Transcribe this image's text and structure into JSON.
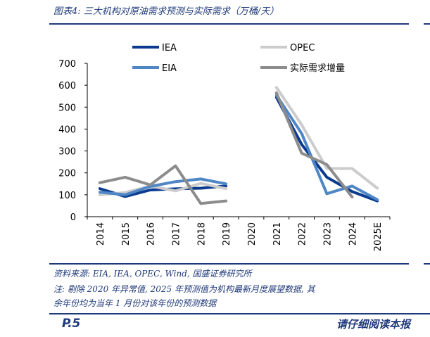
{
  "header": {
    "title": "图表4:  三大机构对原油需求预测与实际需求（万桶/天）"
  },
  "colors": {
    "brand": "#1f3a7a",
    "iea": "#0a3b8f",
    "opec": "#cccccc",
    "eia": "#4f86c6",
    "actual": "#8c8c8c"
  },
  "chart_data": {
    "type": "line",
    "categories": [
      "2014",
      "2015",
      "2016",
      "2017",
      "2018",
      "2019",
      "2020",
      "2021",
      "2022",
      "2023",
      "2024",
      "2025E"
    ],
    "ylim": [
      0,
      700
    ],
    "yticks": [
      0,
      100,
      200,
      300,
      400,
      500,
      600,
      700
    ],
    "ytick_labels": [
      "0",
      "100",
      "200",
      "300",
      "400",
      "500",
      "600",
      "700"
    ],
    "grid": false,
    "legend_position": "top",
    "series": [
      {
        "name": "IEA",
        "color": "#0a3b8f",
        "width": 4,
        "values": [
          128,
          92,
          122,
          127,
          130,
          140,
          null,
          545,
          330,
          180,
          115,
          72
        ]
      },
      {
        "name": "OPEC",
        "color": "#cccccc",
        "width": 4,
        "values": [
          100,
          110,
          140,
          118,
          152,
          128,
          null,
          590,
          420,
          220,
          220,
          130
        ]
      },
      {
        "name": "EIA",
        "color": "#4f86c6",
        "width": 4,
        "values": [
          112,
          100,
          138,
          160,
          172,
          150,
          null,
          555,
          380,
          105,
          140,
          78
        ]
      },
      {
        "name": "实际需求增量",
        "color": "#8c8c8c",
        "width": 4,
        "values": [
          155,
          180,
          145,
          232,
          60,
          72,
          null,
          565,
          290,
          238,
          90,
          null
        ]
      }
    ]
  },
  "footer": {
    "source": "资料来源:  EIA,  IEA,  OPEC,  Wind,  国盛证券研究所",
    "note_line1": "注:  剔除 2020 年异常值,  2025 年预测值为机构最新月度展望数据,  其",
    "note_line2": "余年份均为当年 1 月份对该年份的预测数据",
    "page": "P.5",
    "right_text": "请仔细阅读本报"
  }
}
